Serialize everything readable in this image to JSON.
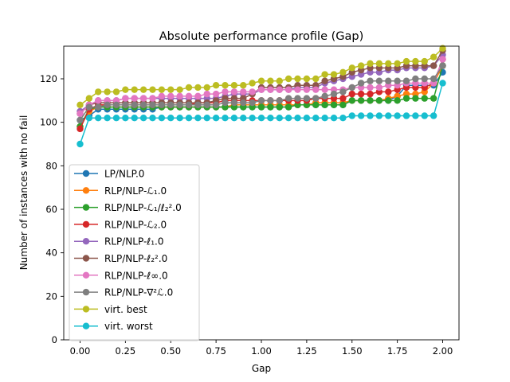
{
  "chart_data": {
    "type": "line",
    "title": "Absolute performance profile (Gap)",
    "xlabel": "Gap",
    "ylabel": "Number of instances with no fail",
    "xlim": [
      -0.09,
      2.09
    ],
    "ylim": [
      0,
      135
    ],
    "xticks": [
      "0.00",
      "0.25",
      "0.50",
      "0.75",
      "1.00",
      "1.25",
      "1.50",
      "1.75",
      "2.00"
    ],
    "xtick_values": [
      0,
      0.25,
      0.5,
      0.75,
      1.0,
      1.25,
      1.5,
      1.75,
      2.0
    ],
    "yticks": [
      "0",
      "20",
      "40",
      "60",
      "80",
      "100",
      "120"
    ],
    "ytick_values": [
      0,
      20,
      40,
      60,
      80,
      100,
      120
    ],
    "grid": false,
    "legend_position": "lower-left",
    "series": [
      {
        "name": "LP/NLP.0",
        "color": "#1f77b4",
        "x": [
          0,
          0.05,
          0.1,
          0.15,
          0.2,
          0.25,
          0.3,
          0.35,
          0.4,
          0.45,
          0.5,
          0.55,
          0.6,
          0.65,
          0.7,
          0.75,
          0.8,
          0.85,
          0.9,
          0.95,
          1.0,
          1.05,
          1.1,
          1.15,
          1.2,
          1.25,
          1.3,
          1.35,
          1.4,
          1.45,
          1.5,
          1.55,
          1.6,
          1.65,
          1.7,
          1.75,
          1.8,
          1.85,
          1.9,
          1.95,
          2.0
        ],
        "y": [
          101,
          103,
          106,
          106,
          106,
          106,
          106,
          106,
          106,
          107,
          107,
          107,
          107,
          107,
          107,
          107,
          107,
          107,
          107,
          107,
          107,
          107,
          107,
          107,
          108,
          108,
          108,
          108,
          108,
          108,
          110,
          110,
          110,
          110,
          110,
          112,
          117,
          117,
          117,
          117,
          123
        ]
      },
      {
        "name": "RLP/NLP-ℒ₁.0",
        "color": "#ff7f0e",
        "x": [
          0,
          0.05,
          0.1,
          0.15,
          0.2,
          0.25,
          0.3,
          0.35,
          0.4,
          0.45,
          0.5,
          0.55,
          0.6,
          0.65,
          0.7,
          0.75,
          0.8,
          0.85,
          0.9,
          0.95,
          1.0,
          1.05,
          1.1,
          1.15,
          1.2,
          1.25,
          1.3,
          1.35,
          1.4,
          1.45,
          1.5,
          1.55,
          1.6,
          1.65,
          1.7,
          1.75,
          1.8,
          1.85,
          1.9,
          1.95,
          2.0
        ],
        "y": [
          98,
          105,
          107,
          107,
          107,
          107,
          107,
          107,
          107,
          107,
          107,
          107,
          107,
          107,
          107,
          107,
          107,
          108,
          108,
          108,
          108,
          108,
          108,
          108,
          108,
          108,
          109,
          109,
          109,
          109,
          110,
          110,
          110,
          110,
          111,
          112,
          113,
          113,
          114,
          118,
          126
        ]
      },
      {
        "name": "RLP/NLP-ℒ₁/ℓ₂².0",
        "color": "#2ca02c",
        "x": [
          0,
          0.05,
          0.1,
          0.15,
          0.2,
          0.25,
          0.3,
          0.35,
          0.4,
          0.45,
          0.5,
          0.55,
          0.6,
          0.65,
          0.7,
          0.75,
          0.8,
          0.85,
          0.9,
          0.95,
          1.0,
          1.05,
          1.1,
          1.15,
          1.2,
          1.25,
          1.3,
          1.35,
          1.4,
          1.45,
          1.5,
          1.55,
          1.6,
          1.65,
          1.7,
          1.75,
          1.8,
          1.85,
          1.9,
          1.95,
          2.0
        ],
        "y": [
          98,
          106,
          107,
          107,
          107,
          107,
          107,
          107,
          107,
          107,
          107,
          107,
          107,
          107,
          107,
          107,
          107,
          107,
          107,
          107,
          107,
          107,
          107,
          107,
          108,
          108,
          108,
          108,
          108,
          108,
          110,
          110,
          110,
          110,
          110,
          110,
          111,
          111,
          111,
          111,
          126
        ]
      },
      {
        "name": "RLP/NLP-ℒ₂.0",
        "color": "#d62728",
        "x": [
          0,
          0.05,
          0.1,
          0.15,
          0.2,
          0.25,
          0.3,
          0.35,
          0.4,
          0.45,
          0.5,
          0.55,
          0.6,
          0.65,
          0.7,
          0.75,
          0.8,
          0.85,
          0.9,
          0.95,
          1.0,
          1.05,
          1.1,
          1.15,
          1.2,
          1.25,
          1.3,
          1.35,
          1.4,
          1.45,
          1.5,
          1.55,
          1.6,
          1.65,
          1.7,
          1.75,
          1.8,
          1.85,
          1.9,
          1.95,
          2.0
        ],
        "y": [
          97,
          106,
          108,
          108,
          108,
          108,
          108,
          108,
          108,
          108,
          108,
          108,
          108,
          109,
          109,
          109,
          110,
          110,
          110,
          110,
          110,
          110,
          110,
          110,
          110,
          110,
          111,
          111,
          111,
          111,
          113,
          113,
          113,
          114,
          114,
          115,
          116,
          116,
          116,
          118,
          129
        ]
      },
      {
        "name": "RLP/NLP-ℓ₁.0",
        "color": "#9467bd",
        "x": [
          0,
          0.05,
          0.1,
          0.15,
          0.2,
          0.25,
          0.3,
          0.35,
          0.4,
          0.45,
          0.5,
          0.55,
          0.6,
          0.65,
          0.7,
          0.75,
          0.8,
          0.85,
          0.9,
          0.95,
          1.0,
          1.05,
          1.1,
          1.15,
          1.2,
          1.25,
          1.3,
          1.35,
          1.4,
          1.45,
          1.5,
          1.55,
          1.6,
          1.65,
          1.7,
          1.75,
          1.8,
          1.85,
          1.9,
          1.95,
          2.0
        ],
        "y": [
          105,
          108,
          110,
          110,
          110,
          111,
          111,
          111,
          111,
          111,
          111,
          111,
          111,
          111,
          111,
          111,
          112,
          113,
          113,
          113,
          115,
          115,
          115,
          115,
          116,
          116,
          116,
          118,
          119,
          120,
          121,
          122,
          123,
          123,
          124,
          124,
          125,
          125,
          125,
          126,
          131
        ]
      },
      {
        "name": "RLP/NLP-ℓ₂².0",
        "color": "#8c564b",
        "x": [
          0,
          0.05,
          0.1,
          0.15,
          0.2,
          0.25,
          0.3,
          0.35,
          0.4,
          0.45,
          0.5,
          0.55,
          0.6,
          0.65,
          0.7,
          0.75,
          0.8,
          0.85,
          0.9,
          0.95,
          1.0,
          1.05,
          1.1,
          1.15,
          1.2,
          1.25,
          1.3,
          1.35,
          1.4,
          1.45,
          1.5,
          1.55,
          1.6,
          1.65,
          1.7,
          1.75,
          1.8,
          1.85,
          1.9,
          1.95,
          2.0
        ],
        "y": [
          104,
          108,
          109,
          109,
          109,
          109,
          109,
          109,
          109,
          109,
          109,
          109,
          109,
          109,
          109,
          110,
          111,
          111,
          111,
          113,
          116,
          116,
          116,
          116,
          117,
          117,
          117,
          119,
          120,
          121,
          123,
          124,
          125,
          125,
          125,
          125,
          126,
          126,
          126,
          126,
          133
        ]
      },
      {
        "name": "RLP/NLP-ℓ∞.0",
        "color": "#e377c2",
        "x": [
          0,
          0.05,
          0.1,
          0.15,
          0.2,
          0.25,
          0.3,
          0.35,
          0.4,
          0.45,
          0.5,
          0.55,
          0.6,
          0.65,
          0.7,
          0.75,
          0.8,
          0.85,
          0.9,
          0.95,
          1.0,
          1.05,
          1.1,
          1.15,
          1.2,
          1.25,
          1.3,
          1.35,
          1.4,
          1.45,
          1.5,
          1.55,
          1.6,
          1.65,
          1.7,
          1.75,
          1.8,
          1.85,
          1.9,
          1.95,
          2.0
        ],
        "y": [
          104,
          108,
          110,
          110,
          110,
          111,
          111,
          111,
          111,
          112,
          112,
          112,
          112,
          112,
          113,
          113,
          114,
          114,
          114,
          114,
          115,
          115,
          115,
          115,
          115,
          115,
          115,
          115,
          115,
          115,
          116,
          116,
          116,
          116,
          117,
          117,
          118,
          118,
          118,
          118,
          129
        ]
      },
      {
        "name": "RLP/NLP-∇²ℒ.0",
        "color": "#7f7f7f",
        "x": [
          0,
          0.05,
          0.1,
          0.15,
          0.2,
          0.25,
          0.3,
          0.35,
          0.4,
          0.45,
          0.5,
          0.55,
          0.6,
          0.65,
          0.7,
          0.75,
          0.8,
          0.85,
          0.9,
          0.95,
          1.0,
          1.05,
          1.1,
          1.15,
          1.2,
          1.25,
          1.3,
          1.35,
          1.4,
          1.45,
          1.5,
          1.55,
          1.6,
          1.65,
          1.7,
          1.75,
          1.8,
          1.85,
          1.9,
          1.95,
          2.0
        ],
        "y": [
          101,
          107,
          107,
          108,
          108,
          108,
          108,
          108,
          108,
          108,
          108,
          108,
          108,
          108,
          108,
          108,
          109,
          109,
          109,
          109,
          110,
          110,
          110,
          111,
          111,
          111,
          111,
          112,
          113,
          114,
          116,
          118,
          119,
          119,
          119,
          119,
          119,
          120,
          120,
          120,
          126
        ]
      },
      {
        "name": "virt. best",
        "color": "#bcbd22",
        "x": [
          0,
          0.05,
          0.1,
          0.15,
          0.2,
          0.25,
          0.3,
          0.35,
          0.4,
          0.45,
          0.5,
          0.55,
          0.6,
          0.65,
          0.7,
          0.75,
          0.8,
          0.85,
          0.9,
          0.95,
          1.0,
          1.05,
          1.1,
          1.15,
          1.2,
          1.25,
          1.3,
          1.35,
          1.4,
          1.45,
          1.5,
          1.55,
          1.6,
          1.65,
          1.7,
          1.75,
          1.8,
          1.85,
          1.9,
          1.95,
          2.0
        ],
        "y": [
          108,
          111,
          114,
          114,
          114,
          115,
          115,
          115,
          115,
          115,
          115,
          115,
          116,
          116,
          116,
          117,
          117,
          117,
          117,
          118,
          119,
          119,
          119,
          120,
          120,
          120,
          120,
          122,
          122,
          123,
          125,
          126,
          127,
          127,
          127,
          127,
          128,
          128,
          128,
          130,
          134
        ]
      },
      {
        "name": "virt. worst",
        "color": "#17becf",
        "x": [
          0,
          0.05,
          0.1,
          0.15,
          0.2,
          0.25,
          0.3,
          0.35,
          0.4,
          0.45,
          0.5,
          0.55,
          0.6,
          0.65,
          0.7,
          0.75,
          0.8,
          0.85,
          0.9,
          0.95,
          1.0,
          1.05,
          1.1,
          1.15,
          1.2,
          1.25,
          1.3,
          1.35,
          1.4,
          1.45,
          1.5,
          1.55,
          1.6,
          1.65,
          1.7,
          1.75,
          1.8,
          1.85,
          1.9,
          1.95,
          2.0
        ],
        "y": [
          90,
          102,
          102,
          102,
          102,
          102,
          102,
          102,
          102,
          102,
          102,
          102,
          102,
          102,
          102,
          102,
          102,
          102,
          102,
          102,
          102,
          102,
          102,
          102,
          102,
          102,
          102,
          102,
          102,
          102,
          103,
          103,
          103,
          103,
          103,
          103,
          103,
          103,
          103,
          103,
          118
        ]
      }
    ]
  }
}
